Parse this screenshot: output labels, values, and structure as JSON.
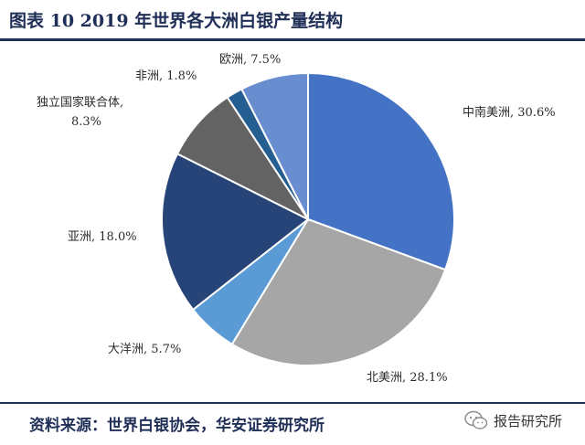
{
  "header": {
    "title": "图表 10 2019 年世界各大洲白银产量结构"
  },
  "footer": {
    "source": "资料来源：世界白银协会，华安证券研究所",
    "watermark": "报告研究所"
  },
  "colors": {
    "中南美洲": "#4472c4",
    "北美洲": "#a6a6a6",
    "大洋洲": "#5b9bd5",
    "亚洲": "#264478",
    "独立国家联合体": "#636363",
    "非洲": "#255e91",
    "欧洲": "#698ed0",
    "text": "#1f2f57"
  },
  "chart_data": {
    "type": "pie",
    "title": "",
    "slices": [
      {
        "name": "中南美洲",
        "value": 30.6,
        "label": "中南美洲, 30.6%"
      },
      {
        "name": "北美洲",
        "value": 28.1,
        "label": "北美洲, 28.1%"
      },
      {
        "name": "大洋洲",
        "value": 5.7,
        "label": "大洋洲, 5.7%"
      },
      {
        "name": "亚洲",
        "value": 18.0,
        "label": "亚洲, 18.0%"
      },
      {
        "name": "独立国家联合体",
        "value": 8.3,
        "label_lines": [
          "独立国家联合体,",
          "8.3%"
        ]
      },
      {
        "name": "非洲",
        "value": 1.8,
        "label": "非洲, 1.8%"
      },
      {
        "name": "欧洲",
        "value": 7.5,
        "label": "欧洲, 7.5%"
      }
    ],
    "start": "12 o'clock",
    "direction": "clockwise",
    "legend": "none"
  }
}
